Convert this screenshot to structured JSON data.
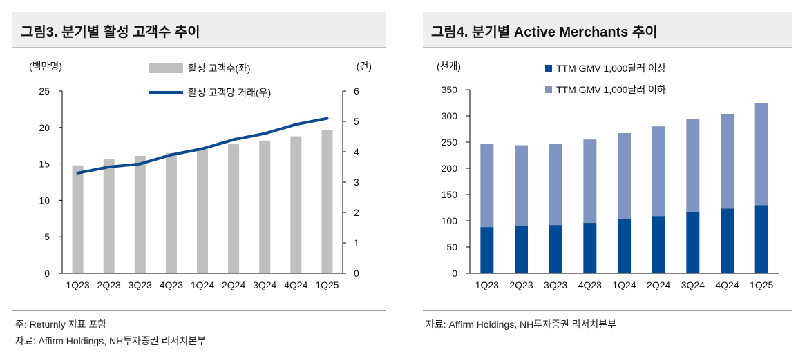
{
  "colors": {
    "bar_gray": "#bfbfbf",
    "line_navy": "#0b4a8f",
    "bar_dark_blue": "#004a96",
    "bar_light_blue": "#7f94c1",
    "axis": "#000000",
    "title_bg": "#eeeeee"
  },
  "panel1": {
    "title": "그림3. 분기별 활성 고객수 추이",
    "note1": "주: Returnly 지표 포함",
    "note2": "자료: Affirm Holdings, NH투자증권 리서치본부"
  },
  "panel2": {
    "title": "그림4. 분기별 Active Merchants 추이",
    "note1": "자료: Affirm Holdings, NH투자증권 리서치본부"
  },
  "chart_data": [
    {
      "type": "bar",
      "combo": "bar+line",
      "title": "그림3. 분기별 활성 고객수 추이",
      "ylabel_left": "(백만명)",
      "ylabel_right": "(건)",
      "categories": [
        "1Q23",
        "2Q23",
        "3Q23",
        "4Q23",
        "1Q24",
        "2Q24",
        "3Q24",
        "4Q24",
        "1Q25"
      ],
      "ylim_left": [
        0,
        25
      ],
      "yticks_left": [
        "0",
        "5",
        "10",
        "15",
        "20",
        "25"
      ],
      "ylim_right": [
        0,
        6
      ],
      "yticks_right": [
        "0",
        "1",
        "2",
        "3",
        "4",
        "5",
        "6"
      ],
      "series": [
        {
          "name": "활성 고객수(좌)",
          "kind": "bar",
          "axis": "left",
          "values": [
            14.8,
            15.7,
            16.1,
            16.5,
            17.0,
            17.7,
            18.2,
            18.8,
            19.6
          ]
        },
        {
          "name": "활성 고객당 거래(우)",
          "kind": "line",
          "axis": "right",
          "values": [
            3.3,
            3.5,
            3.6,
            3.9,
            4.1,
            4.4,
            4.6,
            4.9,
            5.1
          ]
        }
      ]
    },
    {
      "type": "bar",
      "stacked": true,
      "title": "그림4. 분기별 Active Merchants 추이",
      "ylabel": "(천개)",
      "categories": [
        "1Q23",
        "2Q23",
        "3Q23",
        "4Q23",
        "1Q24",
        "2Q24",
        "3Q24",
        "4Q24",
        "1Q25"
      ],
      "ylim": [
        0,
        350
      ],
      "yticks": [
        "0",
        "50",
        "100",
        "150",
        "200",
        "250",
        "300",
        "350"
      ],
      "series": [
        {
          "name": "TTM GMV 1,000달러 이상",
          "values": [
            88,
            90,
            92,
            96,
            104,
            109,
            117,
            123,
            130
          ]
        },
        {
          "name": "TTM GMV 1,000달러 이하",
          "values": [
            158,
            154,
            154,
            159,
            163,
            171,
            177,
            181,
            194
          ]
        }
      ]
    }
  ]
}
